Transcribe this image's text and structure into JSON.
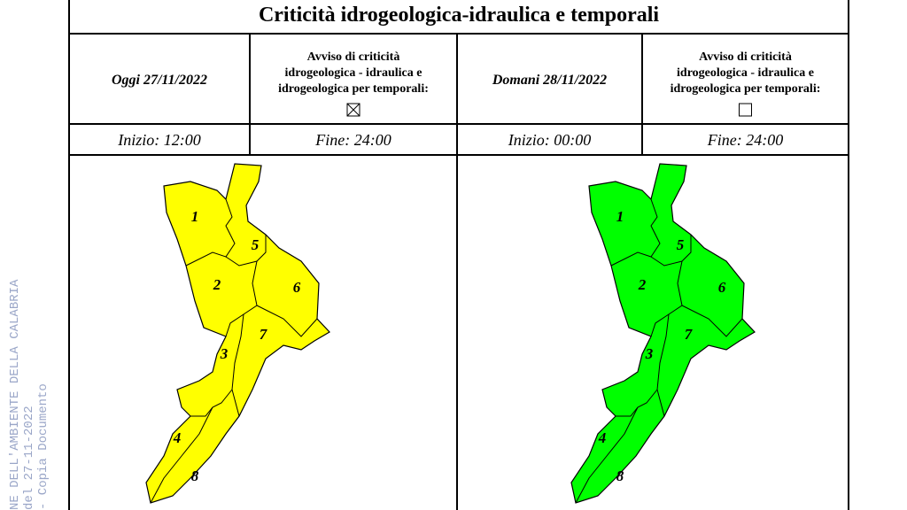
{
  "header": {
    "title": "Criticità idrogeologica-idraulica e temporali"
  },
  "days": [
    {
      "date": "Oggi 27/11/2022",
      "notice": [
        "Avviso di criticità",
        "idrogeologica - idraulica e",
        "idrogeologica per temporali:"
      ],
      "checked": true,
      "start": "Inizio: 12:00",
      "end": "Fine: 24:00",
      "map_color": "#ffff00",
      "zones": [
        1,
        2,
        3,
        4,
        5,
        6,
        7,
        8
      ]
    },
    {
      "date": "Domani 28/11/2022",
      "notice": [
        "Avviso di criticità",
        "idrogeologica - idraulica e",
        "idrogeologica per temporali:"
      ],
      "checked": false,
      "start": "Inizio: 00:00",
      "end": "Fine: 24:00",
      "map_color": "#00ff00",
      "zones": [
        1,
        2,
        3,
        4,
        5,
        6,
        7,
        8
      ]
    }
  ],
  "watermark": [
    "NE DELL'AMBIENTE DELLA CALABRIA",
    "del 27-11-2022",
    "- Copia Documento"
  ]
}
